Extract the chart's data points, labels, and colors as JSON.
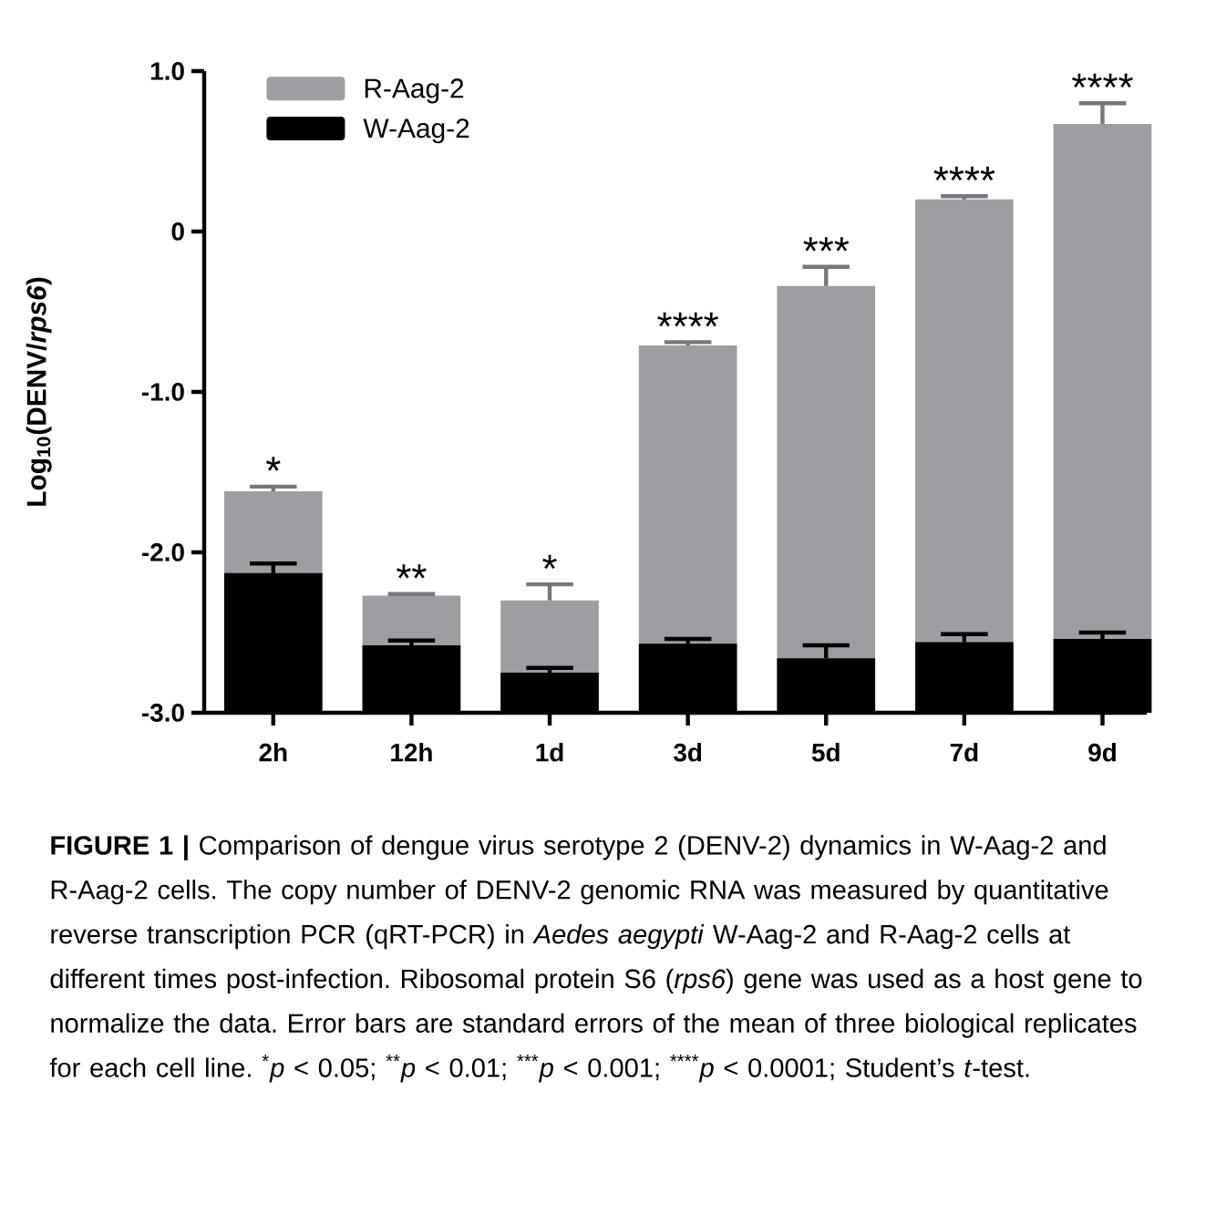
{
  "chart_data": {
    "type": "bar",
    "ylabel": "Log$_{10}$(DENV/*rps6*)",
    "categories": [
      "2h",
      "12h",
      "1d",
      "3d",
      "5d",
      "7d",
      "9d"
    ],
    "series": [
      {
        "name": "R-Aag-2",
        "color": "#9d9ea2",
        "base": [
          -3,
          -3,
          -3,
          -3,
          -3,
          -3,
          -3
        ],
        "values": [
          1.38,
          0.73,
          0.7,
          2.29,
          2.66,
          3.2,
          3.67
        ],
        "errors": [
          [
            -1.62,
            -1.59
          ],
          [
            -2.27,
            -2.26
          ],
          [
            -2.3,
            -2.2
          ],
          [
            -0.71,
            -0.69
          ],
          [
            -0.34,
            -0.22
          ],
          [
            0.2,
            0.22
          ],
          [
            0.67,
            0.8
          ]
        ]
      },
      {
        "name": "W-Aag-2",
        "color": "#000000",
        "base": [
          -3,
          -3,
          -3,
          -3,
          -3,
          -3,
          -3
        ],
        "values": [
          0.87,
          0.42,
          0.25,
          0.43,
          0.34,
          0.44,
          0.46
        ],
        "errors": [
          [
            -2.13,
            -2.07
          ],
          [
            -2.58,
            -2.55
          ],
          [
            -2.75,
            -2.72
          ],
          [
            -2.57,
            -2.54
          ],
          [
            -2.66,
            -2.58
          ],
          [
            -2.56,
            -2.51
          ],
          [
            -2.54,
            -2.5
          ]
        ]
      }
    ],
    "ylim": [
      -3,
      1
    ],
    "yticks": [
      {
        "value": -3,
        "label": "-3.0"
      },
      {
        "value": -2,
        "label": "-2.0"
      },
      {
        "value": -1,
        "label": "-1.0"
      },
      0,
      {
        "value": 1,
        "label": "1.0"
      }
    ],
    "legend": "top left",
    "annotations": [
      "**FIGURE 1 |** Comparison of dengue virus serotype 2 (DENV-2) dynamics in W-Aag-2 and R-Aag-2 cells. The copy number of DENV-2 genomic RNA was measured by quantitative reverse transcription PCR (qRT-PCR) in *Aedes aegypti* W-Aag-2 and R-Aag-2 cells at different times post-infection. Ribosomal protein S6 (*rps6*) gene was used as a host gene to normalize the data. Error bars are standard errors of the mean of three biological replicates for each cell line. $^{*}$*p* < 0.05; $^{**}$*p* < 0.01; $^{***}$*p* < 0.001; $^{****}$*p* < 0.0001; Student’s *t*-test.",
      {
        "text": "*",
        "x": "2h",
        "y": -1.59
      },
      {
        "text": "**",
        "x": "12h",
        "y": -2.26
      },
      {
        "text": "*",
        "x": "1d",
        "y": -2.2
      },
      {
        "text": "****",
        "x": "3d",
        "y": -0.69
      },
      {
        "text": "***",
        "x": "5d",
        "y": -0.22
      },
      {
        "text": "****",
        "x": "7d",
        "y": 0.22
      },
      {
        "text": "****",
        "x": "9d",
        "y": 0.8
      }
    ]
  }
}
